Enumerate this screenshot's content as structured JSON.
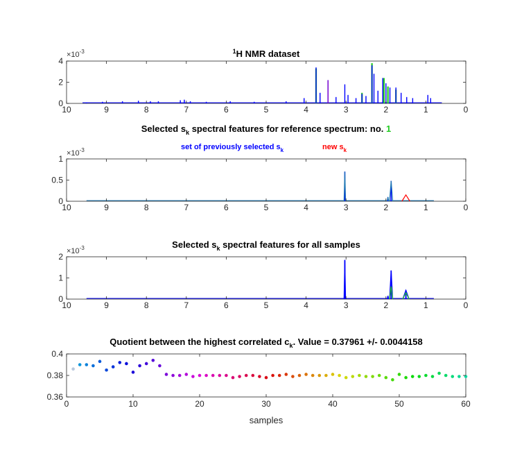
{
  "colors": {
    "dataset": "#0000ff",
    "dataset_overlay": "#22cc22",
    "dataset_accent": "#7a00cc",
    "reference": "#1f77b4",
    "previous": "#0000ff",
    "new": "#ff0000",
    "highlight_number": "#22cc22"
  },
  "chart_data": [
    {
      "type": "line",
      "title_pre": "1",
      "title_main": "H NMR dataset",
      "exponent_label": "×10",
      "exponent_value": "-3",
      "xlim": [
        0,
        10
      ],
      "x_reversed": true,
      "ylim": [
        0,
        4
      ],
      "xticks": [
        "10",
        "9",
        "8",
        "7",
        "6",
        "5",
        "4",
        "3",
        "2",
        "1",
        "0"
      ],
      "yticks": [
        "0",
        "2",
        "4"
      ],
      "peaks": [
        {
          "ppm": 9.5,
          "height": 0.1
        },
        {
          "ppm": 9.1,
          "height": 0.15
        },
        {
          "ppm": 8.6,
          "height": 0.2
        },
        {
          "ppm": 8.2,
          "height": 0.25
        },
        {
          "ppm": 7.9,
          "height": 0.2
        },
        {
          "ppm": 7.7,
          "height": 0.2
        },
        {
          "ppm": 7.15,
          "height": 0.3
        },
        {
          "ppm": 7.05,
          "height": 0.35
        },
        {
          "ppm": 6.9,
          "height": 0.2
        },
        {
          "ppm": 6.5,
          "height": 0.15
        },
        {
          "ppm": 5.9,
          "height": 0.2
        },
        {
          "ppm": 5.3,
          "height": 0.15
        },
        {
          "ppm": 4.5,
          "height": 0.2
        },
        {
          "ppm": 4.05,
          "height": 0.5
        },
        {
          "ppm": 3.75,
          "height": 3.4
        },
        {
          "ppm": 3.65,
          "height": 1.0
        },
        {
          "ppm": 3.45,
          "height": 2.2
        },
        {
          "ppm": 3.25,
          "height": 0.6
        },
        {
          "ppm": 3.03,
          "height": 1.8
        },
        {
          "ppm": 2.95,
          "height": 0.8
        },
        {
          "ppm": 2.75,
          "height": 0.5
        },
        {
          "ppm": 2.6,
          "height": 0.9
        },
        {
          "ppm": 2.5,
          "height": 0.7
        },
        {
          "ppm": 2.35,
          "height": 3.6
        },
        {
          "ppm": 2.3,
          "height": 2.8
        },
        {
          "ppm": 2.2,
          "height": 1.2
        },
        {
          "ppm": 2.08,
          "height": 2.4
        },
        {
          "ppm": 2.0,
          "height": 1.9
        },
        {
          "ppm": 1.9,
          "height": 1.5
        },
        {
          "ppm": 1.75,
          "height": 1.5
        },
        {
          "ppm": 1.62,
          "height": 1.0
        },
        {
          "ppm": 1.48,
          "height": 0.6
        },
        {
          "ppm": 1.33,
          "height": 0.5
        },
        {
          "ppm": 0.95,
          "height": 0.8
        },
        {
          "ppm": 0.88,
          "height": 0.5
        }
      ],
      "overlay_peaks": [
        {
          "ppm": 3.75,
          "height": 3.3
        },
        {
          "ppm": 2.35,
          "height": 3.8
        },
        {
          "ppm": 2.6,
          "height": 1.0
        },
        {
          "ppm": 2.05,
          "height": 2.4
        },
        {
          "ppm": 1.95,
          "height": 1.6
        },
        {
          "ppm": 1.75,
          "height": 1.3
        }
      ],
      "accent_peaks": [
        {
          "ppm": 3.45,
          "height": 2.2
        }
      ]
    },
    {
      "type": "line",
      "title_pre": "Selected s",
      "title_sub": "k",
      "title_post": " spectral features for reference spectrum: no. ",
      "title_number": "1",
      "legend_previous": "set of previously selected s",
      "legend_previous_sub": "k",
      "legend_new": "new s",
      "legend_new_sub": "k",
      "exponent_label": "×10",
      "exponent_value": "-3",
      "xlim": [
        0,
        10
      ],
      "x_reversed": true,
      "ylim": [
        0,
        1
      ],
      "xticks": [
        "10",
        "9",
        "8",
        "7",
        "6",
        "5",
        "4",
        "3",
        "2",
        "1",
        "0"
      ],
      "yticks": [
        "0",
        "0.5",
        "1"
      ],
      "previous_peaks": [
        {
          "ppm": 3.03,
          "height": 0.7,
          "width": 0.02
        },
        {
          "ppm": 1.95,
          "height": 0.1,
          "width": 0.02
        },
        {
          "ppm": 1.87,
          "height": 0.48,
          "width": 0.04
        }
      ],
      "new_peaks": [
        {
          "ppm": 1.5,
          "height": 0.15,
          "width": 0.1
        }
      ],
      "baseline_range": [
        0.8,
        9.5
      ]
    },
    {
      "type": "line",
      "title_pre": "Selected s",
      "title_sub": "k",
      "title_post": " spectral features for all samples",
      "exponent_label": "×10",
      "exponent_value": "-3",
      "xlim": [
        0,
        10
      ],
      "x_reversed": true,
      "ylim": [
        0,
        2
      ],
      "xticks": [
        "10",
        "9",
        "8",
        "7",
        "6",
        "5",
        "4",
        "3",
        "2",
        "1",
        "0"
      ],
      "yticks": [
        "0",
        "1",
        "2"
      ],
      "peaks": [
        {
          "ppm": 3.03,
          "height": 1.85,
          "width": 0.02
        },
        {
          "ppm": 1.95,
          "height": 0.15,
          "width": 0.02
        },
        {
          "ppm": 1.87,
          "height": 1.35,
          "width": 0.04
        },
        {
          "ppm": 1.5,
          "height": 0.42,
          "width": 0.08
        }
      ],
      "overlay_peaks": [
        {
          "ppm": 1.87,
          "height": 0.6,
          "width": 0.04
        },
        {
          "ppm": 1.5,
          "height": 0.3,
          "width": 0.08
        }
      ],
      "baseline_range": [
        0.8,
        9.5
      ]
    },
    {
      "type": "scatter",
      "title": "Quotient between the highest correlated c",
      "title_sub": "k",
      "title_post": ". Value = 0.37961 +/- 0.0044158",
      "xlabel": "samples",
      "xlim": [
        0,
        60
      ],
      "ylim": [
        0.36,
        0.4
      ],
      "xticks": [
        "0",
        "10",
        "20",
        "30",
        "40",
        "50",
        "60"
      ],
      "yticks": [
        "0.36",
        "0.38",
        "0.4"
      ],
      "x": [
        1,
        2,
        3,
        4,
        5,
        6,
        7,
        8,
        9,
        10,
        11,
        12,
        13,
        14,
        15,
        16,
        17,
        18,
        19,
        20,
        21,
        22,
        23,
        24,
        25,
        26,
        27,
        28,
        29,
        30,
        31,
        32,
        33,
        34,
        35,
        36,
        37,
        38,
        39,
        40,
        41,
        42,
        43,
        44,
        45,
        46,
        47,
        48,
        49,
        50,
        51,
        52,
        53,
        54,
        55,
        56,
        57,
        58,
        59,
        60
      ],
      "y": [
        0.386,
        0.39,
        0.39,
        0.389,
        0.393,
        0.385,
        0.388,
        0.392,
        0.391,
        0.383,
        0.389,
        0.391,
        0.394,
        0.389,
        0.381,
        0.38,
        0.38,
        0.381,
        0.379,
        0.38,
        0.38,
        0.38,
        0.38,
        0.38,
        0.378,
        0.379,
        0.38,
        0.38,
        0.379,
        0.378,
        0.38,
        0.38,
        0.381,
        0.379,
        0.38,
        0.381,
        0.38,
        0.38,
        0.38,
        0.381,
        0.38,
        0.378,
        0.379,
        0.38,
        0.379,
        0.379,
        0.38,
        0.378,
        0.376,
        0.381,
        0.378,
        0.379,
        0.379,
        0.38,
        0.379,
        0.382,
        0.38,
        0.379,
        0.379,
        0.379
      ]
    }
  ]
}
